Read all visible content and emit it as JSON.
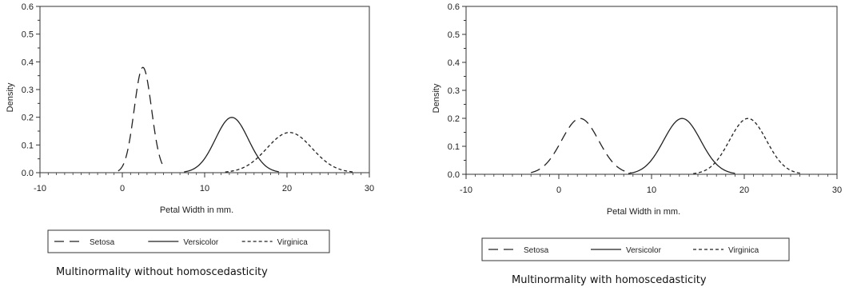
{
  "charts": [
    {
      "caption": "Multinormality without homoscedasticity",
      "chart_data": {
        "type": "line",
        "title": "",
        "xlabel": "Petal Width in mm.",
        "ylabel": "Density",
        "xlim": [
          -10,
          30
        ],
        "ylim": [
          0.0,
          0.6
        ],
        "x_ticks": [
          "-10",
          "0",
          "10",
          "20",
          "30"
        ],
        "y_ticks": [
          "0.0",
          "0.1",
          "0.2",
          "0.3",
          "0.4",
          "0.5",
          "0.6"
        ],
        "legend_position": "bottom",
        "series": [
          {
            "name": "Setosa",
            "dash": "long-dash",
            "mean": 2.5,
            "sd": 1.05,
            "x_range": [
              -0.5,
              5.0
            ],
            "x": [
              -0.5,
              0.5,
              1.5,
              2.5,
              3.5,
              4.5,
              5.0
            ],
            "y": [
              0.01,
              0.08,
              0.24,
              0.38,
              0.24,
              0.08,
              0.03
            ]
          },
          {
            "name": "Versicolor",
            "dash": "solid",
            "mean": 13.3,
            "sd": 2.0,
            "x_range": [
              7.5,
              19.0
            ],
            "x": [
              7.5,
              9.3,
              11.3,
              13.3,
              15.3,
              17.3,
              19.0
            ],
            "y": [
              0.003,
              0.027,
              0.121,
              0.2,
              0.121,
              0.027,
              0.004
            ]
          },
          {
            "name": "Virginica",
            "dash": "short-dash",
            "mean": 20.3,
            "sd": 2.75,
            "x_range": [
              12.5,
              28.0
            ],
            "x": [
              12.5,
              15.0,
              17.5,
              20.3,
              23.0,
              25.5,
              28.0
            ],
            "y": [
              0.003,
              0.023,
              0.091,
              0.145,
              0.091,
              0.023,
              0.003
            ]
          }
        ]
      }
    },
    {
      "caption": "Multinormality with homoscedasticity",
      "chart_data": {
        "type": "line",
        "title": "",
        "xlabel": "Petal Width in mm.",
        "ylabel": "Density",
        "xlim": [
          -10,
          30
        ],
        "ylim": [
          0.0,
          0.6
        ],
        "x_ticks": [
          "-10",
          "0",
          "10",
          "20",
          "30"
        ],
        "y_ticks": [
          "0.0",
          "0.1",
          "0.2",
          "0.3",
          "0.4",
          "0.5",
          "0.6"
        ],
        "legend_position": "bottom",
        "series": [
          {
            "name": "Setosa",
            "dash": "long-dash",
            "mean": 2.3,
            "sd": 2.0,
            "x_range": [
              -3.0,
              7.8
            ],
            "x": [
              -3.0,
              -1.5,
              0.3,
              2.3,
              4.3,
              6.3,
              7.8
            ],
            "y": [
              0.002,
              0.016,
              0.121,
              0.2,
              0.121,
              0.027,
              0.005
            ]
          },
          {
            "name": "Versicolor",
            "dash": "solid",
            "mean": 13.3,
            "sd": 2.0,
            "x_range": [
              7.5,
              19.0
            ],
            "x": [
              7.5,
              9.3,
              11.3,
              13.3,
              15.3,
              17.3,
              19.0
            ],
            "y": [
              0.003,
              0.027,
              0.121,
              0.2,
              0.121,
              0.027,
              0.004
            ]
          },
          {
            "name": "Virginica",
            "dash": "short-dash",
            "mean": 20.4,
            "sd": 2.0,
            "x_range": [
              14.5,
              26.2
            ],
            "x": [
              14.5,
              16.4,
              18.4,
              20.4,
              22.4,
              24.4,
              26.2
            ],
            "y": [
              0.003,
              0.027,
              0.121,
              0.2,
              0.121,
              0.027,
              0.003
            ]
          }
        ]
      }
    }
  ]
}
